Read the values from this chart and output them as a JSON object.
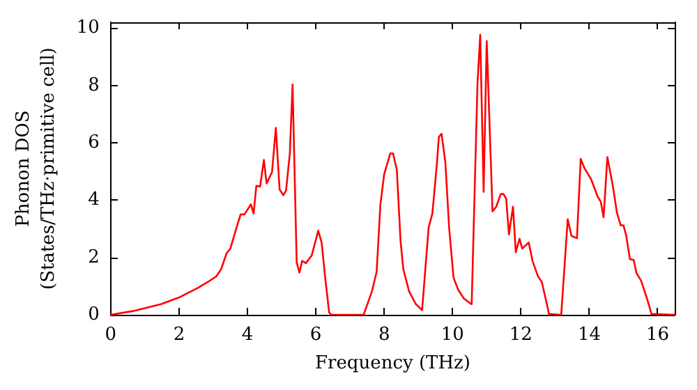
{
  "chart_data": {
    "type": "line",
    "xlabel": "Frequency (THz)",
    "ylabel": "Phonon DOS\n(States/THz·primitive cell)",
    "xlim": [
      0,
      16.5
    ],
    "xticks": [
      0,
      2,
      4,
      6,
      8,
      10,
      12,
      14,
      16
    ],
    "ylim": [
      0,
      10.2
    ],
    "yticks": [
      0,
      2,
      4,
      6,
      8,
      10
    ],
    "grid": false,
    "marker": "none",
    "line_style": "solid",
    "series": [
      {
        "color": "#ff0000",
        "x": [
          0,
          0.65,
          1.47,
          2.01,
          2.55,
          2.82,
          3.09,
          3.23,
          3.39,
          3.5,
          3.66,
          3.8,
          3.91,
          4.1,
          4.18,
          4.26,
          4.37,
          4.48,
          4.56,
          4.72,
          4.83,
          4.94,
          5.05,
          5.13,
          5.24,
          5.32,
          5.44,
          5.52,
          5.6,
          5.71,
          5.88,
          6.07,
          6.17,
          6.28,
          6.39,
          6.45,
          7.4,
          7.64,
          7.78,
          7.89,
          8.0,
          8.18,
          8.26,
          8.37,
          8.48,
          8.56,
          8.73,
          8.93,
          9.11,
          9.3,
          9.41,
          9.54,
          9.6,
          9.68,
          9.79,
          9.9,
          10.03,
          10.17,
          10.33,
          10.52,
          10.56,
          10.73,
          10.81,
          10.91,
          11.0,
          11.17,
          11.28,
          11.41,
          11.49,
          11.57,
          11.65,
          11.77,
          11.85,
          11.96,
          12.04,
          12.23,
          12.34,
          12.5,
          12.61,
          12.77,
          12.82,
          13.18,
          13.37,
          13.48,
          13.64,
          13.75,
          13.86,
          14.05,
          14.24,
          14.34,
          14.42,
          14.53,
          14.69,
          14.81,
          14.92,
          15.0,
          15.08,
          15.19,
          15.3,
          15.38,
          15.52,
          15.71,
          15.82,
          16.5
        ],
        "values": [
          0,
          0.13,
          0.37,
          0.61,
          0.94,
          1.13,
          1.34,
          1.59,
          2.15,
          2.31,
          2.96,
          3.5,
          3.5,
          3.85,
          3.53,
          4.5,
          4.47,
          5.4,
          4.58,
          4.98,
          6.52,
          4.37,
          4.17,
          4.34,
          5.63,
          8.03,
          1.83,
          1.47,
          1.88,
          1.8,
          2.07,
          2.93,
          2.52,
          1.23,
          0.08,
          0,
          0,
          0.81,
          1.5,
          3.85,
          4.9,
          5.63,
          5.63,
          5.06,
          2.56,
          1.59,
          0.81,
          0.37,
          0.16,
          3.04,
          3.53,
          5.23,
          6.2,
          6.31,
          5.31,
          3.04,
          1.29,
          0.86,
          0.57,
          0.4,
          0.37,
          8.06,
          9.76,
          4.29,
          9.55,
          3.61,
          3.77,
          4.21,
          4.21,
          4.05,
          2.8,
          3.77,
          2.18,
          2.65,
          2.31,
          2.52,
          1.88,
          1.34,
          1.15,
          0.32,
          0.03,
          0,
          3.33,
          2.75,
          2.67,
          5.44,
          5.11,
          4.74,
          4.14,
          3.93,
          3.4,
          5.5,
          4.5,
          3.56,
          3.12,
          3.12,
          2.77,
          1.94,
          1.91,
          1.46,
          1.18,
          0.49,
          0.03,
          0
        ]
      }
    ]
  }
}
